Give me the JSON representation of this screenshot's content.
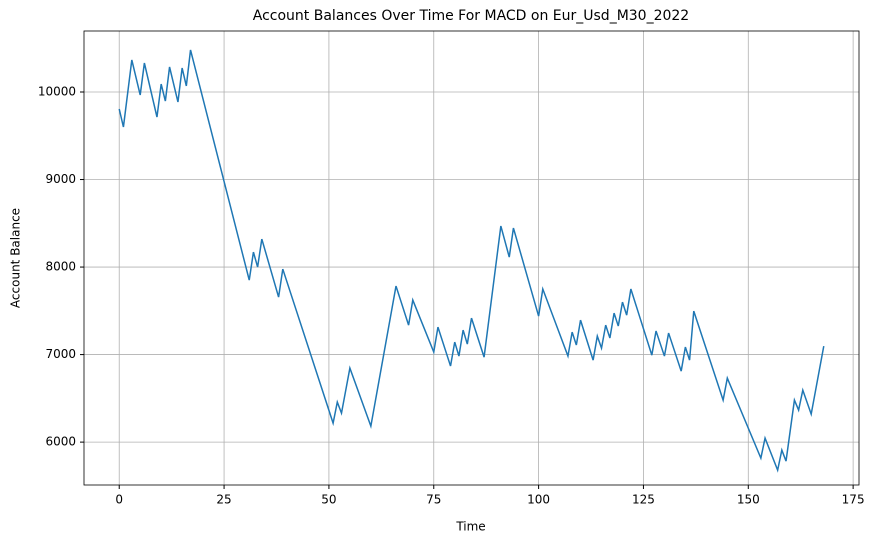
{
  "chart_data": {
    "type": "line",
    "title": "Account Balances Over Time For MACD on Eur_Usd_M30_2022",
    "x_label": "Time",
    "y_label": "Account Balance",
    "x": [
      0,
      1,
      3,
      5,
      6,
      9,
      10,
      11,
      12,
      14,
      15,
      16,
      17,
      31,
      32,
      33,
      34,
      38,
      39,
      51,
      52,
      53,
      55,
      60,
      66,
      69,
      70,
      75,
      76,
      79,
      80,
      81,
      82,
      83,
      84,
      87,
      91,
      93,
      94,
      100,
      101,
      107,
      108,
      109,
      110,
      113,
      114,
      115,
      116,
      117,
      118,
      119,
      120,
      121,
      122,
      127,
      128,
      130,
      131,
      134,
      135,
      136,
      137,
      144,
      145,
      153,
      154,
      157,
      158,
      159,
      161,
      162,
      163,
      165,
      168
    ],
    "series": [
      {
        "name": "Account Balance",
        "color": "#1f77b4",
        "values": [
          9806,
          9600,
          10366,
          9966,
          10331,
          9714,
          10091,
          9897,
          10286,
          9886,
          10274,
          10069,
          10480,
          7851,
          8171,
          8000,
          8320,
          7657,
          7977,
          6217,
          6457,
          6331,
          6846,
          6183,
          7783,
          7337,
          7623,
          7029,
          7314,
          6869,
          7143,
          6983,
          7280,
          7120,
          7417,
          6971,
          8469,
          8114,
          8446,
          7440,
          7749,
          6983,
          7257,
          7109,
          7394,
          6937,
          7211,
          7074,
          7337,
          7189,
          7474,
          7326,
          7600,
          7451,
          7749,
          6994,
          7269,
          6983,
          7246,
          6811,
          7086,
          6937,
          7497,
          6480,
          6731,
          5817,
          6046,
          5680,
          5909,
          5783,
          6480,
          6366,
          6594,
          6320,
          7097
        ]
      }
    ],
    "xlim": [
      -8.4,
      176.4
    ],
    "xticks": [
      0,
      25,
      50,
      75,
      100,
      125,
      150,
      175
    ],
    "ylim": [
      5510,
      10697
    ],
    "yticks": [
      6000,
      7000,
      8000,
      9000,
      10000
    ],
    "grid": true
  }
}
